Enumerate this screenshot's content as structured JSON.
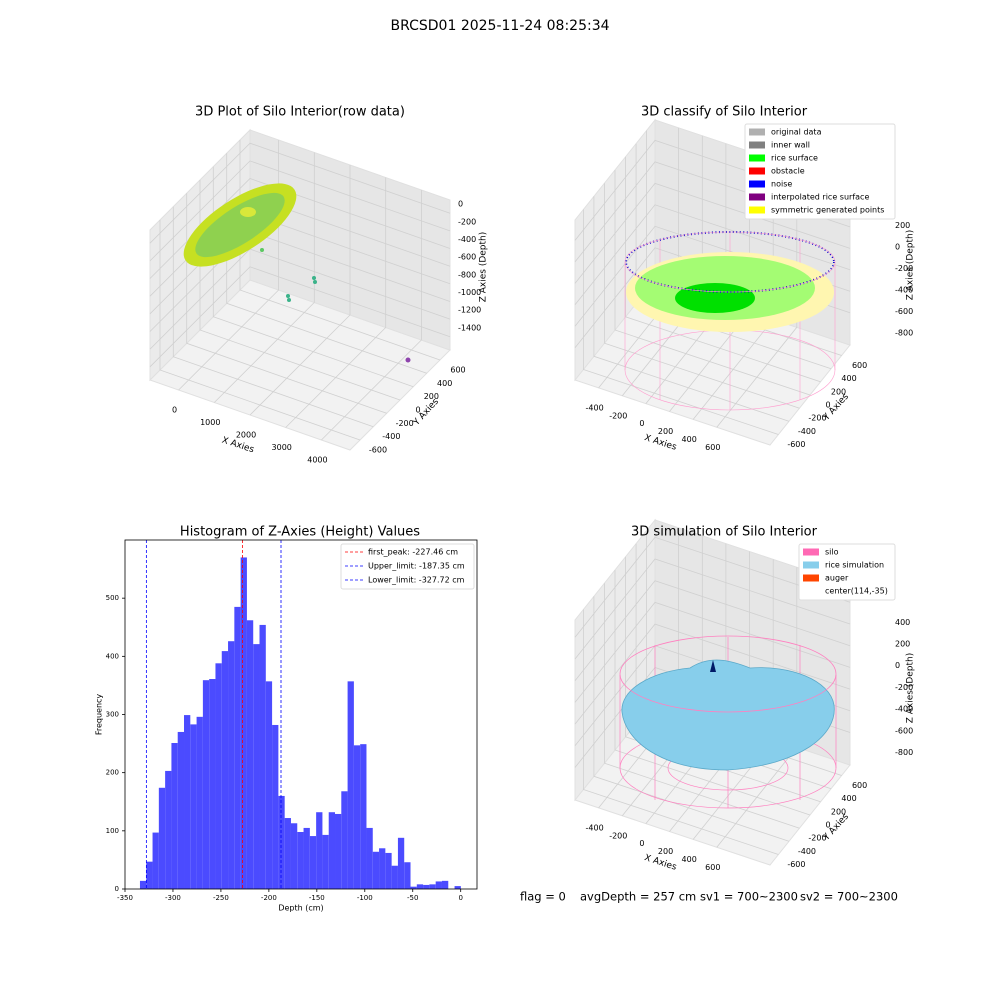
{
  "title": "BRCSD01 2025-11-24 08:25:34",
  "chart_data": [
    {
      "type": "scatter3d",
      "title": "3D Plot of Silo Interior(row data)",
      "xlabel": "X Axies",
      "ylabel": "Y Axies",
      "zlabel": "Z Axies (Depth)",
      "xlim": [
        -800,
        4800
      ],
      "xticks": [
        0,
        1000,
        2000,
        3000,
        4000
      ],
      "ylim": [
        -750,
        750
      ],
      "yticks": [
        -600,
        -400,
        -200,
        0,
        200,
        400,
        600
      ],
      "zlim": [
        -1550,
        150
      ],
      "zticks": [
        -1400,
        -1200,
        -1000,
        -800,
        -600,
        -400,
        -200,
        0
      ]
    },
    {
      "type": "scatter3d",
      "title": "3D classify of Silo Interior",
      "xlabel": "X Axies",
      "ylabel": "Y Axies",
      "zlabel": "Z Axies (Depth)",
      "xlim": [
        -600,
        1050
      ],
      "xticks": [
        -400,
        -200,
        0,
        200,
        400,
        600
      ],
      "ylim": [
        -760,
        760
      ],
      "yticks": [
        -600,
        -400,
        -200,
        0,
        200,
        400,
        600
      ],
      "zlim": [
        -1100,
        390
      ],
      "zticks": [
        -800,
        -600,
        -400,
        -200,
        0,
        200
      ],
      "legend": [
        {
          "label": "original data",
          "color": "#b0b0b0"
        },
        {
          "label": "inner wall",
          "color": "#808080"
        },
        {
          "label": "rice surface",
          "color": "#00ff00"
        },
        {
          "label": "obstacle",
          "color": "#ff0000"
        },
        {
          "label": "noise",
          "color": "#0000ff"
        },
        {
          "label": "interpolated rice surface",
          "color": "#800080"
        },
        {
          "label": "symmetric generated points",
          "color": "#ffff00"
        }
      ]
    },
    {
      "type": "histogram",
      "title": "Histogram of Z-Axies (Height) Values",
      "xlabel": "Depth (cm)",
      "ylabel": "Frequency",
      "color": "#4b4bff",
      "bins": [
        -334.4,
        -327.84,
        -321.28,
        -314.72,
        -308.16,
        -301.6,
        -295.04,
        -288.48,
        -281.92,
        -275.36,
        -268.8,
        -262.24,
        -255.68,
        -249.12,
        -242.56,
        -236,
        -229.44,
        -222.88,
        -216.32,
        -209.76,
        -203.2,
        -196.64,
        -190.08,
        -183.52,
        -176.96,
        -170.4,
        -163.84,
        -157.28,
        -150.72,
        -144.16,
        -137.6,
        -131.04,
        -124.48,
        -117.92,
        -111.36,
        -104.8,
        -98.24,
        -91.68,
        -85.12,
        -78.56,
        -72,
        -65.44,
        -58.88,
        -52.32,
        -45.76,
        -39.2,
        -32.64,
        -26.08,
        -19.52,
        -12.96,
        -6.4,
        0.16
      ],
      "values": [
        14,
        47,
        97,
        174,
        203,
        251,
        270,
        299,
        283,
        296,
        359,
        361,
        388,
        409,
        426,
        485,
        570,
        462,
        421,
        454,
        357,
        282,
        160,
        122,
        113,
        98,
        105,
        91,
        132,
        93,
        132,
        129,
        168,
        357,
        247,
        249,
        105,
        64,
        70,
        62,
        40,
        88,
        46,
        4,
        8,
        7,
        8,
        13,
        14,
        0,
        5
      ],
      "xlim": [
        -350,
        17
      ],
      "xticks": [
        -350,
        -300,
        -250,
        -200,
        -150,
        -100,
        -50,
        0
      ],
      "ylim": [
        0,
        600
      ],
      "yticks": [
        0,
        100,
        200,
        300,
        400,
        500
      ],
      "lines": [
        {
          "label": "first_peak: -227.46 cm",
          "value": -227.46,
          "color": "#ff0000"
        },
        {
          "label": "Upper_limit: -187.35 cm",
          "value": -187.35,
          "color": "#0000ff"
        },
        {
          "label": "Lower_limit: -327.72 cm",
          "value": -327.72,
          "color": "#0000ff"
        }
      ]
    },
    {
      "type": "surface3d",
      "title": "3D simulation of Silo Interior",
      "xlabel": "X Axies",
      "ylabel": "Y Axies",
      "zlabel": "Z Axies (Depth)",
      "xlim": [
        -600,
        1050
      ],
      "xticks": [
        -400,
        -200,
        0,
        200,
        400,
        600
      ],
      "ylim": [
        -760,
        760
      ],
      "yticks": [
        -600,
        -400,
        -200,
        0,
        200,
        400,
        600
      ],
      "zlim": [
        -1100,
        560
      ],
      "zticks": [
        -800,
        -600,
        -400,
        -200,
        0,
        200,
        400
      ],
      "legend": [
        {
          "label": "silo",
          "color": "#ff69b4"
        },
        {
          "label": "rice simulation",
          "color": "#87ceeb"
        },
        {
          "label": "auger",
          "color": "#ff4500"
        },
        {
          "label": "center(114,-35)"
        }
      ]
    }
  ],
  "footer": [
    "flag = 0",
    "avgDepth = 257 cm",
    "sv1 = 700~2300",
    "sv2 = 700~2300"
  ]
}
